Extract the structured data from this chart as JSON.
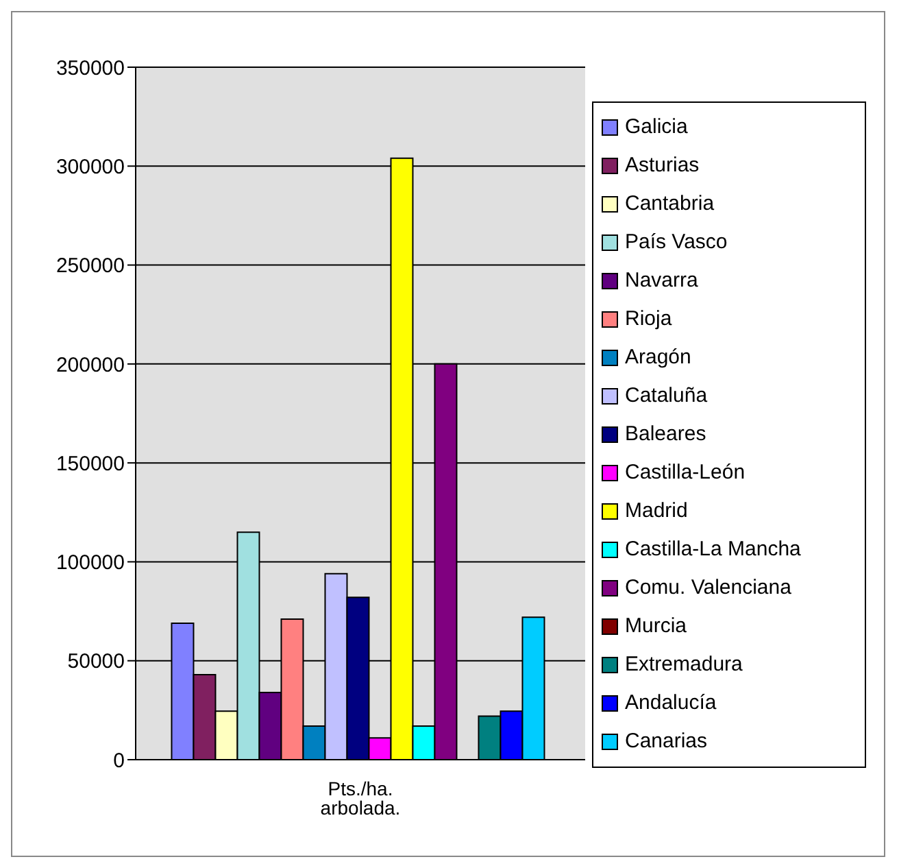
{
  "chart_data": {
    "type": "bar",
    "categories": [
      "Pts./ha. arbolada."
    ],
    "series": [
      {
        "name": "Galicia",
        "color": "#8080ff",
        "values": [
          69000
        ]
      },
      {
        "name": "Asturias",
        "color": "#802060",
        "values": [
          43000
        ]
      },
      {
        "name": "Cantabria",
        "color": "#ffffc0",
        "values": [
          24500
        ]
      },
      {
        "name": "País Vasco",
        "color": "#a0e0e0",
        "values": [
          115000
        ]
      },
      {
        "name": "Navarra",
        "color": "#600080",
        "values": [
          34000
        ]
      },
      {
        "name": "Rioja",
        "color": "#ff8080",
        "values": [
          71000
        ]
      },
      {
        "name": "Aragón",
        "color": "#0080c0",
        "values": [
          17000
        ]
      },
      {
        "name": "Cataluña",
        "color": "#c0c0ff",
        "values": [
          94000
        ]
      },
      {
        "name": "Baleares",
        "color": "#000080",
        "values": [
          82000
        ]
      },
      {
        "name": "Castilla-León",
        "color": "#ff00ff",
        "values": [
          11000
        ]
      },
      {
        "name": "Madrid",
        "color": "#ffff00",
        "values": [
          304000
        ]
      },
      {
        "name": "Castilla-La Mancha",
        "color": "#00ffff",
        "values": [
          17000
        ]
      },
      {
        "name": "Comu. Valenciana",
        "color": "#800080",
        "values": [
          200000
        ]
      },
      {
        "name": "Murcia",
        "color": "#800000",
        "values": [
          0
        ]
      },
      {
        "name": "Extremadura",
        "color": "#008080",
        "values": [
          22000
        ]
      },
      {
        "name": "Andalucía",
        "color": "#0000ff",
        "values": [
          24500
        ]
      },
      {
        "name": "Canarias",
        "color": "#00ccff",
        "values": [
          72000
        ]
      }
    ],
    "ylim": [
      0,
      350000
    ],
    "yticks": [
      0,
      50000,
      100000,
      150000,
      200000,
      250000,
      300000,
      350000
    ],
    "grid": "y",
    "legend": "right"
  }
}
